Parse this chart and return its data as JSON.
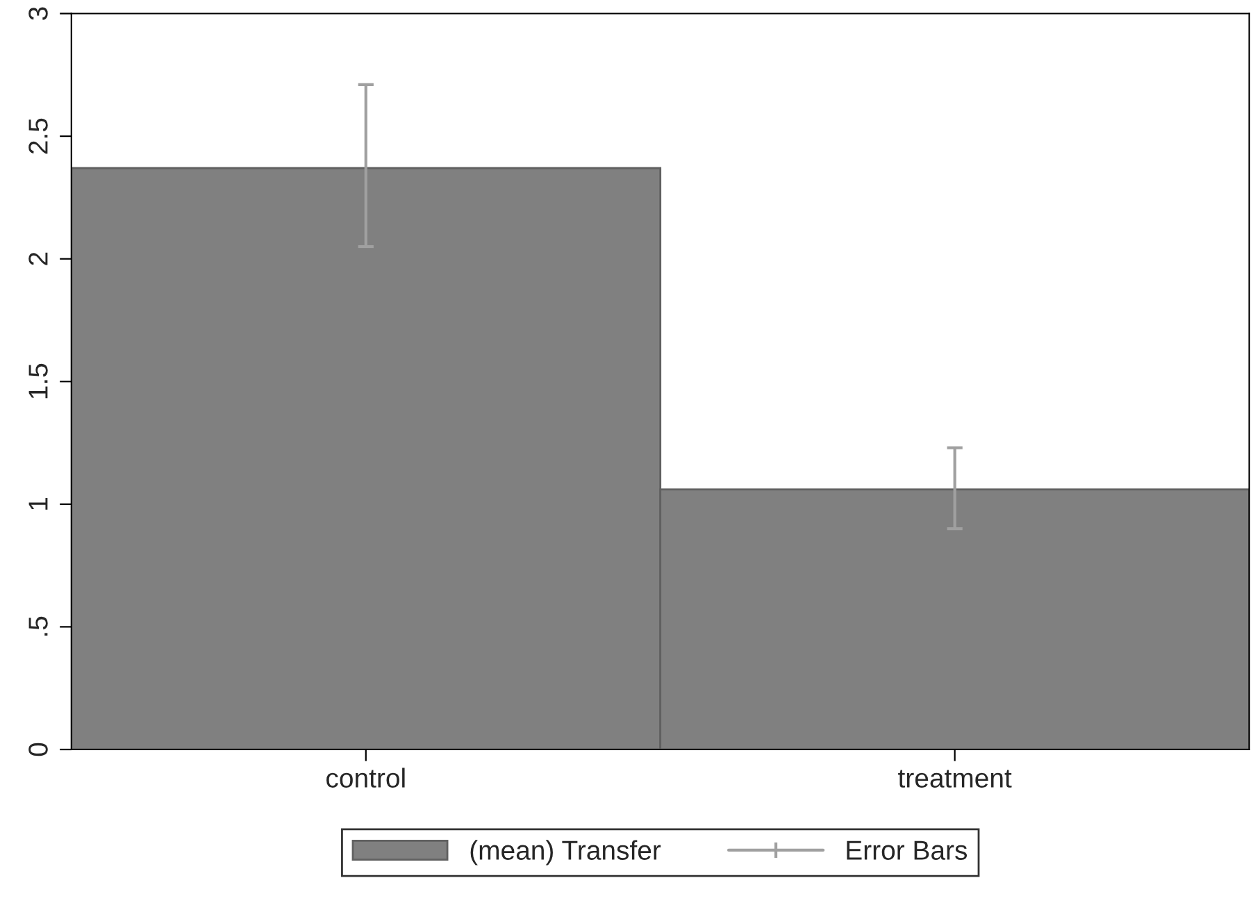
{
  "chart_data": {
    "type": "bar",
    "categories": [
      "control",
      "treatment"
    ],
    "series": [
      {
        "name": "(mean) Transfer",
        "color": "#808080",
        "values": [
          2.37,
          1.06
        ],
        "errors": [
          [
            2.05,
            2.71
          ],
          [
            0.9,
            1.23
          ]
        ]
      }
    ],
    "ylim": [
      0,
      3
    ],
    "yticks": [
      0,
      {
        "value": 0.5,
        "label": ".5"
      },
      1,
      1.5,
      2,
      2.5,
      3
    ],
    "annotations": [
      "Error Bars"
    ],
    "legend": "bottom",
    "grid": false
  }
}
